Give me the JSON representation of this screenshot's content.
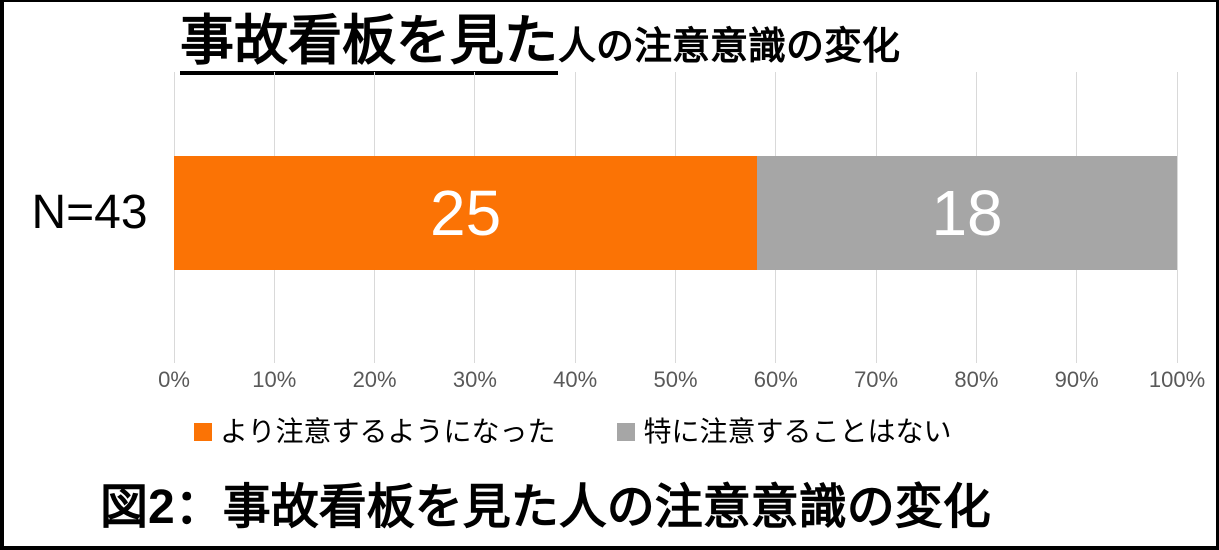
{
  "title": {
    "main": "事故看板を見た",
    "sub": "人の注意意識の変化"
  },
  "caption": "図2：事故看板を見た人の注意意識の変化",
  "chart_data": {
    "type": "bar",
    "orientation": "horizontal",
    "stacked": true,
    "title": "事故看板を見た人の注意意識の変化",
    "categories": [
      "N=43"
    ],
    "total": 43,
    "series": [
      {
        "name": "より注意するようになった",
        "value": 25,
        "color": "#FB7305"
      },
      {
        "name": "特に注意することはない",
        "value": 18,
        "color": "#A6A6A6"
      }
    ],
    "value_labels": [
      "25",
      "18"
    ],
    "value_label_color": "#FFFFFF",
    "xlabel": "",
    "ylabel": "",
    "x_axis": {
      "ticks": [
        "0%",
        "10%",
        "20%",
        "30%",
        "40%",
        "50%",
        "60%",
        "70%",
        "80%",
        "90%",
        "100%"
      ],
      "min": 0,
      "max": 100,
      "unit": "percent"
    },
    "grid": "vertical",
    "gridline_color": "#D9D9D9",
    "tick_label_color": "#595959",
    "legend_position": "bottom"
  }
}
